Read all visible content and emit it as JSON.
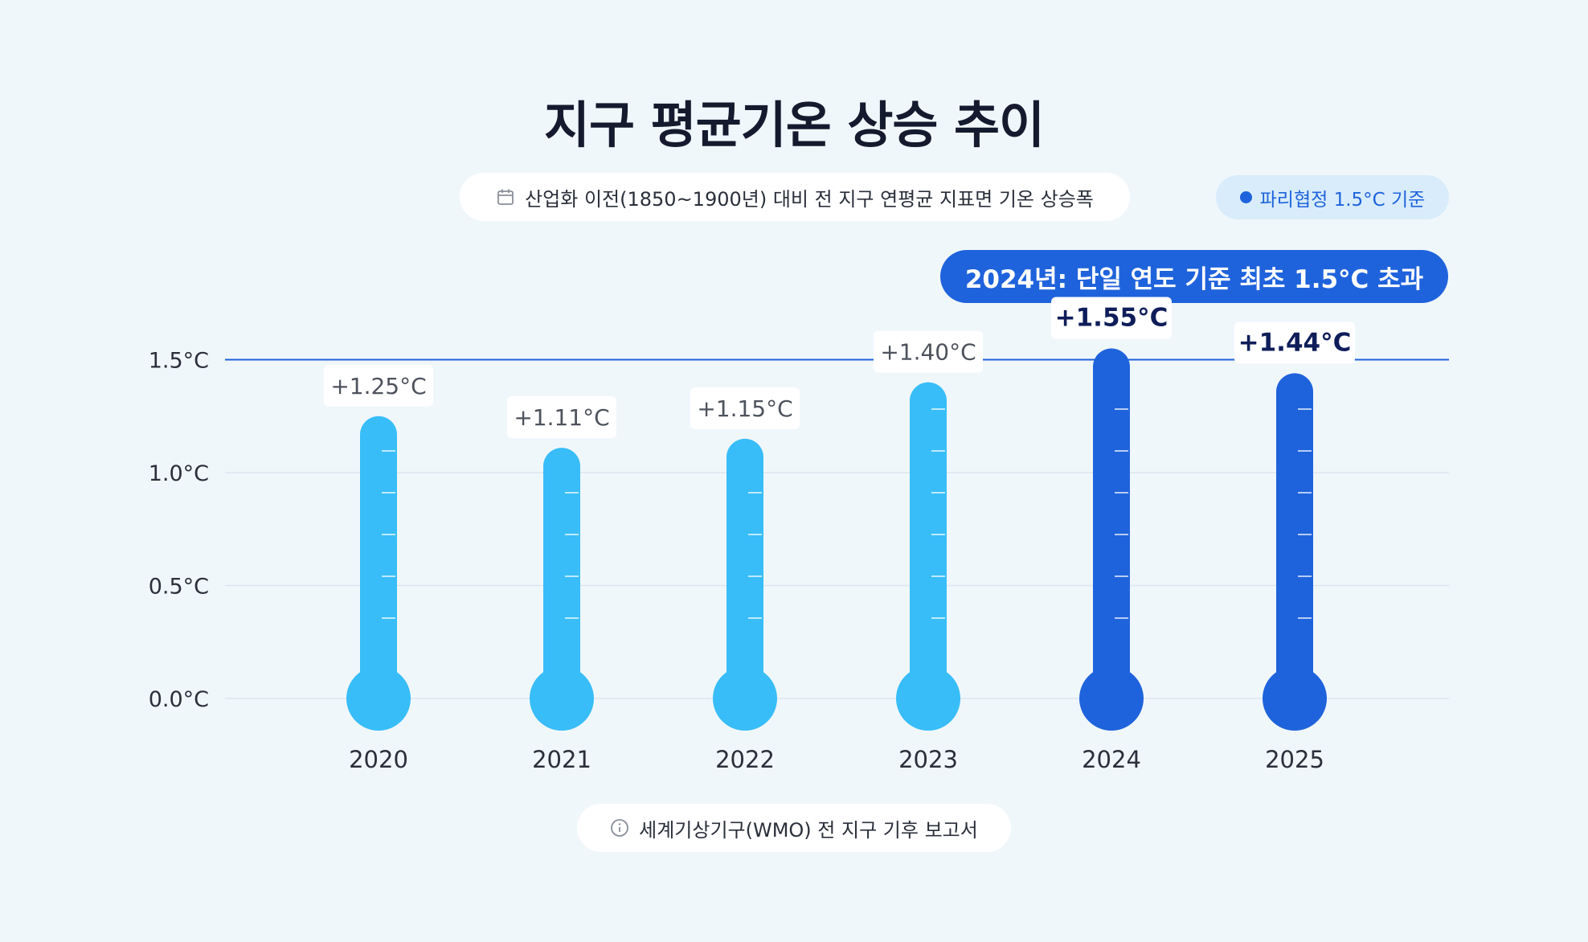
{
  "title": "지구 평균기온 상승 추이",
  "subtitle": "산업화 이전(1850~1900년) 대비 전 지구 연평균 지표면 기온 상승폭",
  "subtitle_icon": "calendar-icon",
  "legend": {
    "label": "파리협정 1.5°C 기준",
    "color": "#1f63dc"
  },
  "callout": "2024년: 단일 연도 기준 최초 1.5°C 초과",
  "source": "세계기상기구(WMO) 전 지구 기후 보고서",
  "source_icon": "info-icon",
  "colors": {
    "normal": "#38bdf8",
    "exceed": "#1f63dc",
    "reference_line": "#1f63dc",
    "grid": "#dbe6ef",
    "axis_text": "#2a2f3a"
  },
  "chart_data": {
    "type": "bar",
    "style": "thermometer",
    "categories": [
      "2020",
      "2021",
      "2022",
      "2023",
      "2024",
      "2025"
    ],
    "values": [
      1.25,
      1.11,
      1.15,
      1.4,
      1.55,
      1.44
    ],
    "data_labels": [
      "+1.25°C",
      "+1.11°C",
      "+1.15°C",
      "+1.40°C",
      "+1.55°C",
      "+1.44°C"
    ],
    "highlighted": [
      false,
      false,
      false,
      false,
      true,
      true
    ],
    "y_ticks": [
      0.0,
      0.5,
      1.0,
      1.5
    ],
    "y_tick_labels": [
      "0.0°C",
      "0.5°C",
      "1.0°C",
      "1.5°C"
    ],
    "ylim": [
      0,
      1.5
    ],
    "reference_line": {
      "value": 1.5
    },
    "grid": true
  }
}
